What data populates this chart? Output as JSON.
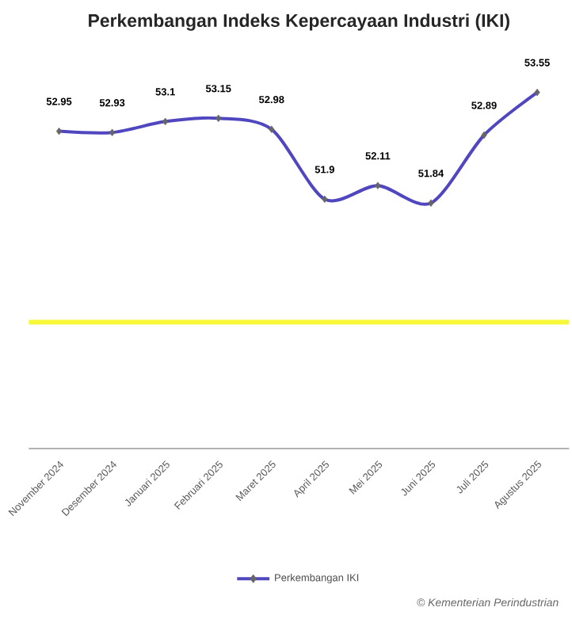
{
  "chart_data": {
    "type": "line",
    "title": "Perkembangan Indeks Kepercayaan Industri (IKI)",
    "categories": [
      "November 2024",
      "Desember 2024",
      "Januari 2025",
      "Februari 2025",
      "Maret 2025",
      "April 2025",
      "Mei 2025",
      "Juni 2025",
      "Juli 2025",
      "Agustus 2025"
    ],
    "series": [
      {
        "name": "Perkembangan IKI",
        "color": "#5046c0",
        "values": [
          52.95,
          52.93,
          53.1,
          53.15,
          52.98,
          51.9,
          52.11,
          51.84,
          52.89,
          53.55
        ]
      }
    ],
    "tick_labels": "x",
    "ref_lines": [
      {
        "axis": "y",
        "value": 50,
        "color": "#f8f83a"
      }
    ],
    "data_labels": true,
    "marker": "diamond",
    "legend": "bottom",
    "annotations": [
      "© Kementerian Perindustrian"
    ]
  }
}
